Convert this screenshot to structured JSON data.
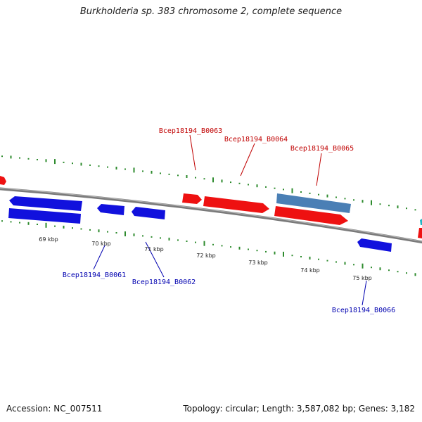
{
  "title": "Burkholderia sp. 383 chromosome 2, complete sequence",
  "footer": {
    "accession": "Accession: NC_007511",
    "summary": "Topology: circular; Length: 3,587,082 bp; Genes: 3,182"
  },
  "colors": {
    "forward_gene": "#ee1111",
    "reverse_gene": "#1111dd",
    "rna_gene": "#4a7fb5",
    "backbone": "#808080",
    "gc_ticks": "#2e8b2e",
    "forward_label": "#c00000",
    "reverse_label": "#0000b0"
  },
  "scale_labels": [
    "69 kbp",
    "70 kbp",
    "71 kbp",
    "72 kbp",
    "73 kbp",
    "74 kbp",
    "75 kbp"
  ],
  "gene_labels": {
    "b0061": "Bcep18194_B0061",
    "b0062": "Bcep18194_B0062",
    "b0063": "Bcep18194_B0063",
    "b0064": "Bcep18194_B0064",
    "b0065": "Bcep18194_B0065",
    "b0066": "Bcep18194_B0066"
  }
}
